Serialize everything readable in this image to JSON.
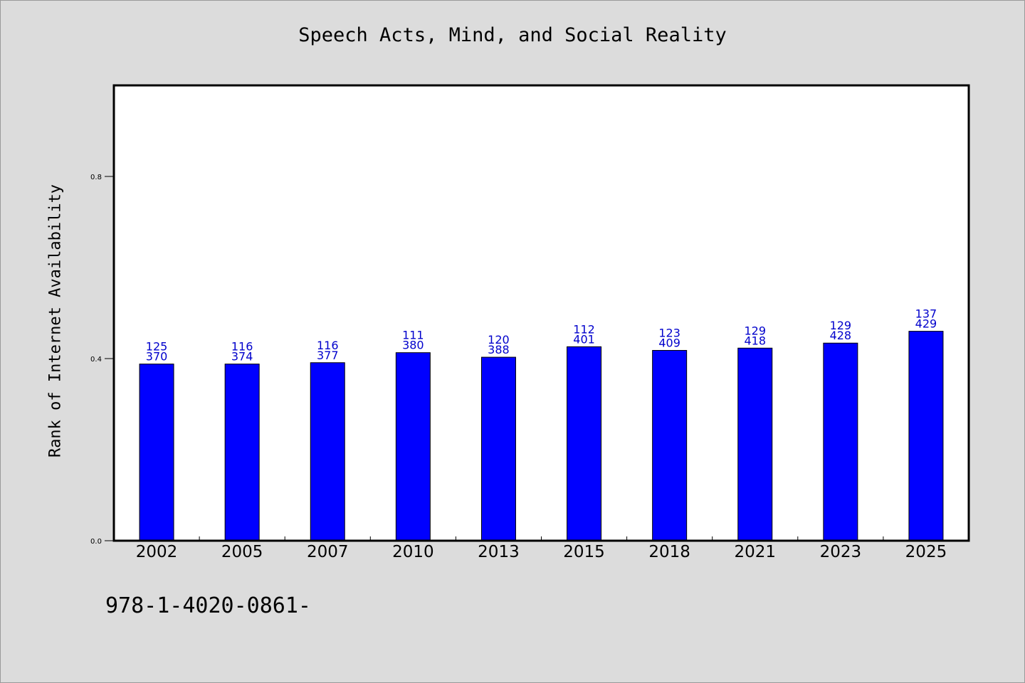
{
  "chart_data": {
    "type": "bar",
    "title": "Speech Acts, Mind, and Social Reality",
    "xlabel": "",
    "ylabel": "Rank of Internet Availability",
    "categories": [
      "2002",
      "2005",
      "2007",
      "2010",
      "2013",
      "2015",
      "2018",
      "2021",
      "2023",
      "2025"
    ],
    "values": [
      0.388,
      0.388,
      0.391,
      0.413,
      0.403,
      0.426,
      0.418,
      0.423,
      0.434,
      0.46
    ],
    "labels_top": [
      "125",
      "116",
      "116",
      "111",
      "120",
      "112",
      "123",
      "129",
      "129",
      "137"
    ],
    "labels_bottom": [
      "370",
      "374",
      "377",
      "380",
      "388",
      "401",
      "409",
      "418",
      "428",
      "429"
    ],
    "ylim": [
      0,
      1.0
    ],
    "yticks": [
      0.0,
      0.4,
      0.8
    ],
    "ytick_labels": [
      "0.0",
      "0.4",
      "0.8"
    ],
    "grid": false,
    "bar_color": "#0000ff",
    "label_color": "#0000cc"
  },
  "footnote": "978-1-4020-0861-"
}
